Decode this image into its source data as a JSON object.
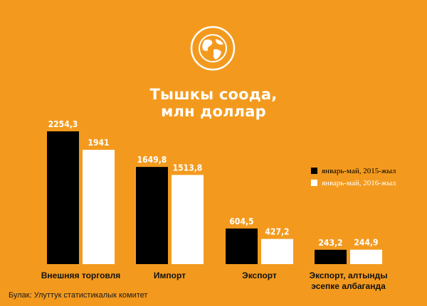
{
  "colors": {
    "background": "#f39a1e",
    "series_2015": "#000000",
    "series_2016": "#ffffff",
    "text_light": "#ffffff",
    "text_dark": "#111111"
  },
  "icon": "globe-icon",
  "title_line1": "Тышкы соода,",
  "title_line2": "млн доллар",
  "source": "Булак: Улуттук статистикалык комитет",
  "chart_data": {
    "type": "bar",
    "title": "Тышкы соода, млн доллар",
    "categories": [
      "Внешняя торговля",
      "Импорт",
      "Экспорт",
      "Экспорт, алтынды эсепке албаганда"
    ],
    "category_lines": [
      [
        "Внешняя торговля"
      ],
      [
        "Импорт"
      ],
      [
        "Экспорт"
      ],
      [
        "Экспорт, алтынды",
        "эсепке албаганда"
      ]
    ],
    "series": [
      {
        "name": "январь-май, 2015-жыл",
        "values": [
          2254.3,
          1649.8,
          604.5,
          243.2
        ],
        "labels": [
          "2254,3",
          "1649,8",
          "604,5",
          "243,2"
        ]
      },
      {
        "name": "январь-май, 2016-жыл",
        "values": [
          1941,
          1513.8,
          427.2,
          244.9
        ],
        "labels": [
          "1941",
          "1513,8",
          "427,2",
          "244,9"
        ]
      }
    ],
    "legend_position": "right",
    "grid": false
  }
}
